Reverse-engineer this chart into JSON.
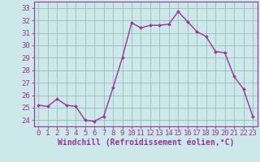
{
  "hours": [
    0,
    1,
    2,
    3,
    4,
    5,
    6,
    7,
    8,
    9,
    10,
    11,
    12,
    13,
    14,
    15,
    16,
    17,
    18,
    19,
    20,
    21,
    22,
    23
  ],
  "values": [
    25.2,
    25.1,
    25.7,
    25.2,
    25.1,
    24.0,
    23.9,
    24.3,
    26.6,
    29.0,
    31.8,
    31.4,
    31.6,
    31.6,
    31.7,
    32.7,
    31.9,
    31.1,
    30.7,
    29.5,
    29.4,
    27.5,
    26.5,
    24.3
  ],
  "line_color": "#993399",
  "marker": "D",
  "marker_size": 2,
  "linewidth": 1.0,
  "bg_color": "#cce8e8",
  "grid_color": "#99bbbb",
  "xlabel": "Windchill (Refroidissement éolien,°C)",
  "xlabel_color": "#993399",
  "ylabel_ticks": [
    24,
    25,
    26,
    27,
    28,
    29,
    30,
    31,
    32,
    33
  ],
  "xtick_labels": [
    "0",
    "1",
    "2",
    "3",
    "4",
    "5",
    "6",
    "7",
    "8",
    "9",
    "10",
    "11",
    "12",
    "13",
    "14",
    "15",
    "16",
    "17",
    "18",
    "19",
    "20",
    "21",
    "22",
    "23"
  ],
  "ylim": [
    23.5,
    33.5
  ],
  "xlim": [
    -0.5,
    23.5
  ],
  "tick_fontsize": 6.5,
  "xlabel_fontsize": 7.0
}
